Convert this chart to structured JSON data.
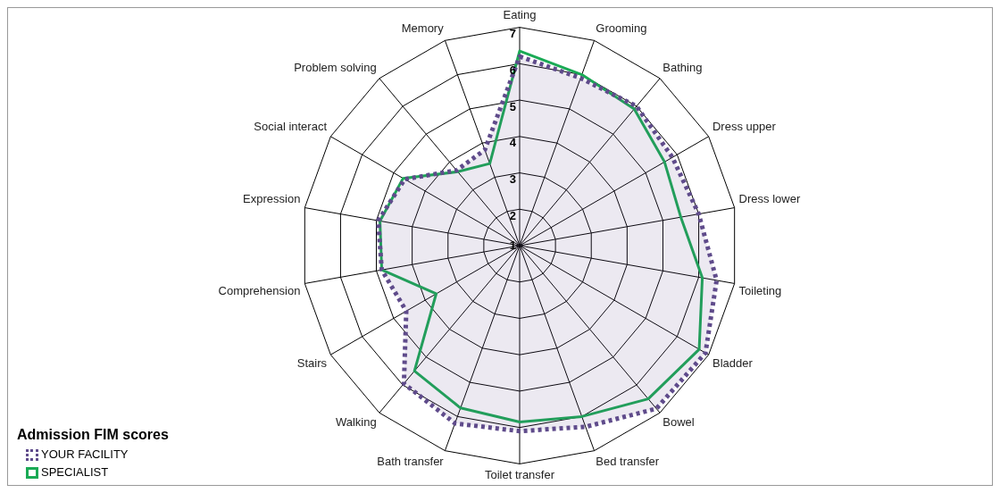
{
  "chart_data": {
    "type": "radar",
    "categories": [
      "Eating",
      "Grooming",
      "Bathing",
      "Dress upper",
      "Dress lower",
      "Toileting",
      "Bladder",
      "Bowel",
      "Bed transfer",
      "Toilet transfer",
      "Bath transfer",
      "Walking",
      "Stairs",
      "Comprehension",
      "Expression",
      "Social interact",
      "Problem solving",
      "Memory"
    ],
    "series": [
      {
        "name": "YOUR FACILITY",
        "type": "area",
        "color": "#5f4b8b",
        "line_style": "dotted",
        "values": [
          6.2,
          5.9,
          6.0,
          5.85,
          6.0,
          6.5,
          6.9,
          6.85,
          6.3,
          6.1,
          6.2,
          5.95,
          4.6,
          4.85,
          4.95,
          4.65,
          3.7,
          3.8
        ]
      },
      {
        "name": "SPECIALIST",
        "color": "#1aaa55",
        "line_style": "solid",
        "values": [
          6.35,
          6.0,
          5.9,
          5.6,
          5.5,
          6.1,
          6.7,
          6.5,
          6.0,
          5.85,
          5.75,
          5.5,
          3.65,
          4.85,
          4.9,
          4.7,
          3.65,
          3.4
        ]
      }
    ],
    "ylim": [
      1,
      7
    ],
    "yticks": [
      1,
      2,
      3,
      4,
      5,
      6,
      7
    ],
    "grid": true,
    "legend": "bottom left",
    "legend_title": "Admission FIM scores",
    "marker": "none"
  }
}
